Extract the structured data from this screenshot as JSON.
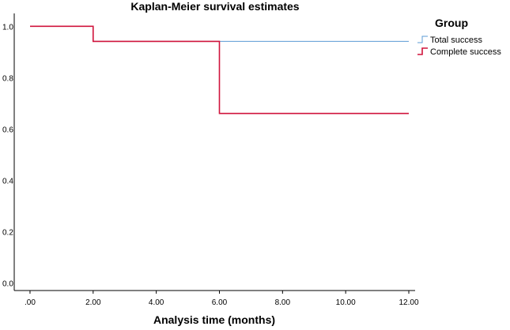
{
  "chart_data": {
    "type": "line",
    "subtype": "step",
    "title": "Kaplan-Meier survival estimates",
    "xlabel": "Analysis time (months)",
    "ylabel": "",
    "xlim": [
      -0.5,
      12.2
    ],
    "ylim": [
      -0.03,
      1.05
    ],
    "x_ticks": [
      0,
      2,
      4,
      6,
      8,
      10,
      12
    ],
    "x_tick_labels": [
      ".00",
      "2.00",
      "4.00",
      "6.00",
      "8.00",
      "10.00",
      "12.00"
    ],
    "y_ticks": [
      0,
      0.2,
      0.4,
      0.6,
      0.8,
      1.0
    ],
    "y_tick_labels": [
      "0.0",
      "0.2",
      "0.4",
      "0.6",
      "0.8",
      "1.0"
    ],
    "grid": false,
    "legend_title": "Group",
    "legend_position": "top-right-outside",
    "series": [
      {
        "name": "Total success",
        "color": "#5b9bd5",
        "points": [
          [
            0,
            1.0
          ],
          [
            2,
            1.0
          ],
          [
            2,
            0.941
          ],
          [
            12,
            0.941
          ]
        ]
      },
      {
        "name": "Complete success",
        "color": "#d0143c",
        "points": [
          [
            0,
            1.0
          ],
          [
            2,
            1.0
          ],
          [
            2,
            0.941
          ],
          [
            6,
            0.941
          ],
          [
            6,
            0.66
          ],
          [
            12,
            0.66
          ]
        ]
      }
    ]
  }
}
